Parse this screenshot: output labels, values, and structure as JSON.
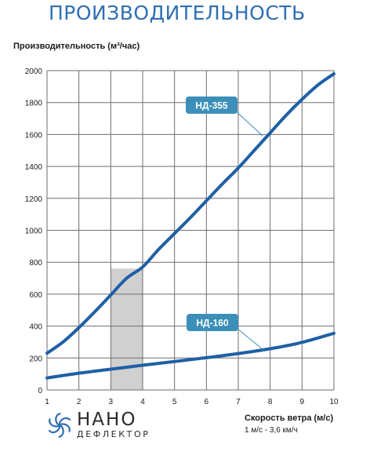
{
  "header": {
    "title": "ПРОИЗВОДИТЕЛЬНОСТЬ"
  },
  "colors": {
    "title": "#2f6fb3",
    "line": "#1f5fa6",
    "callout": "#3b8fb8",
    "highlight": "#d0d0d0",
    "grid": "#6e6e6e"
  },
  "chart_data": {
    "type": "line",
    "title": "",
    "ylabel": "Производительность (м³/час)",
    "xlabel": "Скорость ветра (м/с)",
    "xnote": "1 м/с - 3,6 км/ч",
    "xlim": [
      1,
      10
    ],
    "ylim": [
      0,
      2000
    ],
    "x_ticks": [
      1,
      2,
      3,
      4,
      5,
      6,
      7,
      8,
      9,
      10
    ],
    "y_ticks": [
      0,
      200,
      400,
      600,
      800,
      1000,
      1200,
      1400,
      1600,
      1800,
      2000
    ],
    "grid": true,
    "highlight_band": [
      3,
      4
    ],
    "series": [
      {
        "name": "НД-355",
        "x": [
          1,
          1.5,
          2,
          2.5,
          3,
          3.5,
          4,
          4.5,
          5,
          5.5,
          6,
          6.5,
          7,
          7.5,
          8,
          8.5,
          9,
          9.5,
          10
        ],
        "y": [
          230,
          300,
          390,
          490,
          595,
          700,
          770,
          880,
          980,
          1080,
          1185,
          1290,
          1390,
          1500,
          1610,
          1720,
          1820,
          1910,
          1980
        ]
      },
      {
        "name": "НД-160",
        "x": [
          1,
          2,
          3,
          4,
          5,
          6,
          7,
          8,
          9,
          10
        ],
        "y": [
          75,
          105,
          130,
          155,
          178,
          202,
          228,
          258,
          298,
          355
        ]
      }
    ]
  },
  "logo": {
    "name": "НАНО",
    "sub": "ДЕФЛЕКТОР",
    "icon": "fan-icon"
  }
}
